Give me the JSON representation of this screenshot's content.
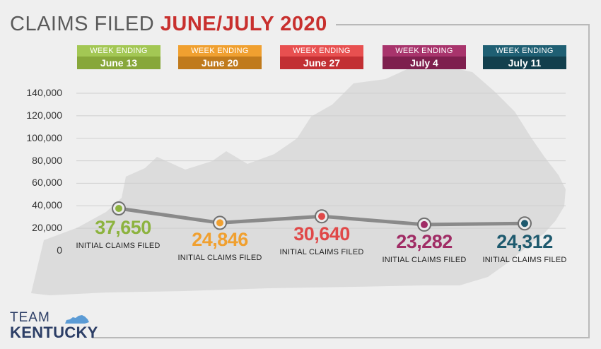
{
  "title": {
    "prefix": "CLAIMS FILED",
    "accent": "JUNE/JULY 2020"
  },
  "colors": {
    "title_gray": "#5a5a5a",
    "title_red": "#c8302e",
    "line": "#8a8a8a",
    "grid": "#cfcfcf",
    "map": "#dcdcdc",
    "frame": "#b9b9b9",
    "logo_blue": "#2c3e66",
    "logo_light_blue": "#5b9bd5"
  },
  "legend": [
    {
      "top": "WEEK ENDING",
      "bottom": "June 13",
      "top_color": "#a3c754",
      "bottom_color": "#87a73a"
    },
    {
      "top": "WEEK ENDING",
      "bottom": "June 20",
      "top_color": "#f0a030",
      "bottom_color": "#c07a1c"
    },
    {
      "top": "WEEK ENDING",
      "bottom": "June 27",
      "top_color": "#e85050",
      "bottom_color": "#c22f33"
    },
    {
      "top": "WEEK ENDING",
      "bottom": "July 4",
      "top_color": "#a8346c",
      "bottom_color": "#7e1f4e"
    },
    {
      "top": "WEEK ENDING",
      "bottom": "July 11",
      "top_color": "#1f5f73",
      "bottom_color": "#123f4d"
    }
  ],
  "chart_data": {
    "type": "line",
    "title": "CLAIMS FILED JUNE/JULY 2020",
    "categories": [
      "June 13",
      "June 20",
      "June 27",
      "July 4",
      "July 11"
    ],
    "values": [
      37650,
      24846,
      30640,
      23282,
      24312
    ],
    "value_labels": [
      "37,650",
      "24,846",
      "30,640",
      "23,282",
      "24,312"
    ],
    "sub_labels": [
      "INITIAL CLAIMS FILED",
      "INITIAL CLAIMS FILED",
      "INITIAL CLAIMS FILED",
      "INITIAL CLAIMS FILED",
      "INITIAL CLAIMS FILED"
    ],
    "point_colors": [
      "#8db33f",
      "#f0a030",
      "#e04848",
      "#a02c65",
      "#1e5a6e"
    ],
    "yticks": [
      0,
      20000,
      40000,
      60000,
      80000,
      100000,
      120000,
      140000
    ],
    "ytick_labels": [
      "0",
      "20,000",
      "40,000",
      "60,000",
      "80,000",
      "100,000",
      "120,000",
      "140,000"
    ],
    "ylim": [
      0,
      140000
    ],
    "grid": true,
    "legend_position": "top"
  },
  "logo": {
    "line1": "TEAM",
    "line2": "KENTUCKY"
  }
}
